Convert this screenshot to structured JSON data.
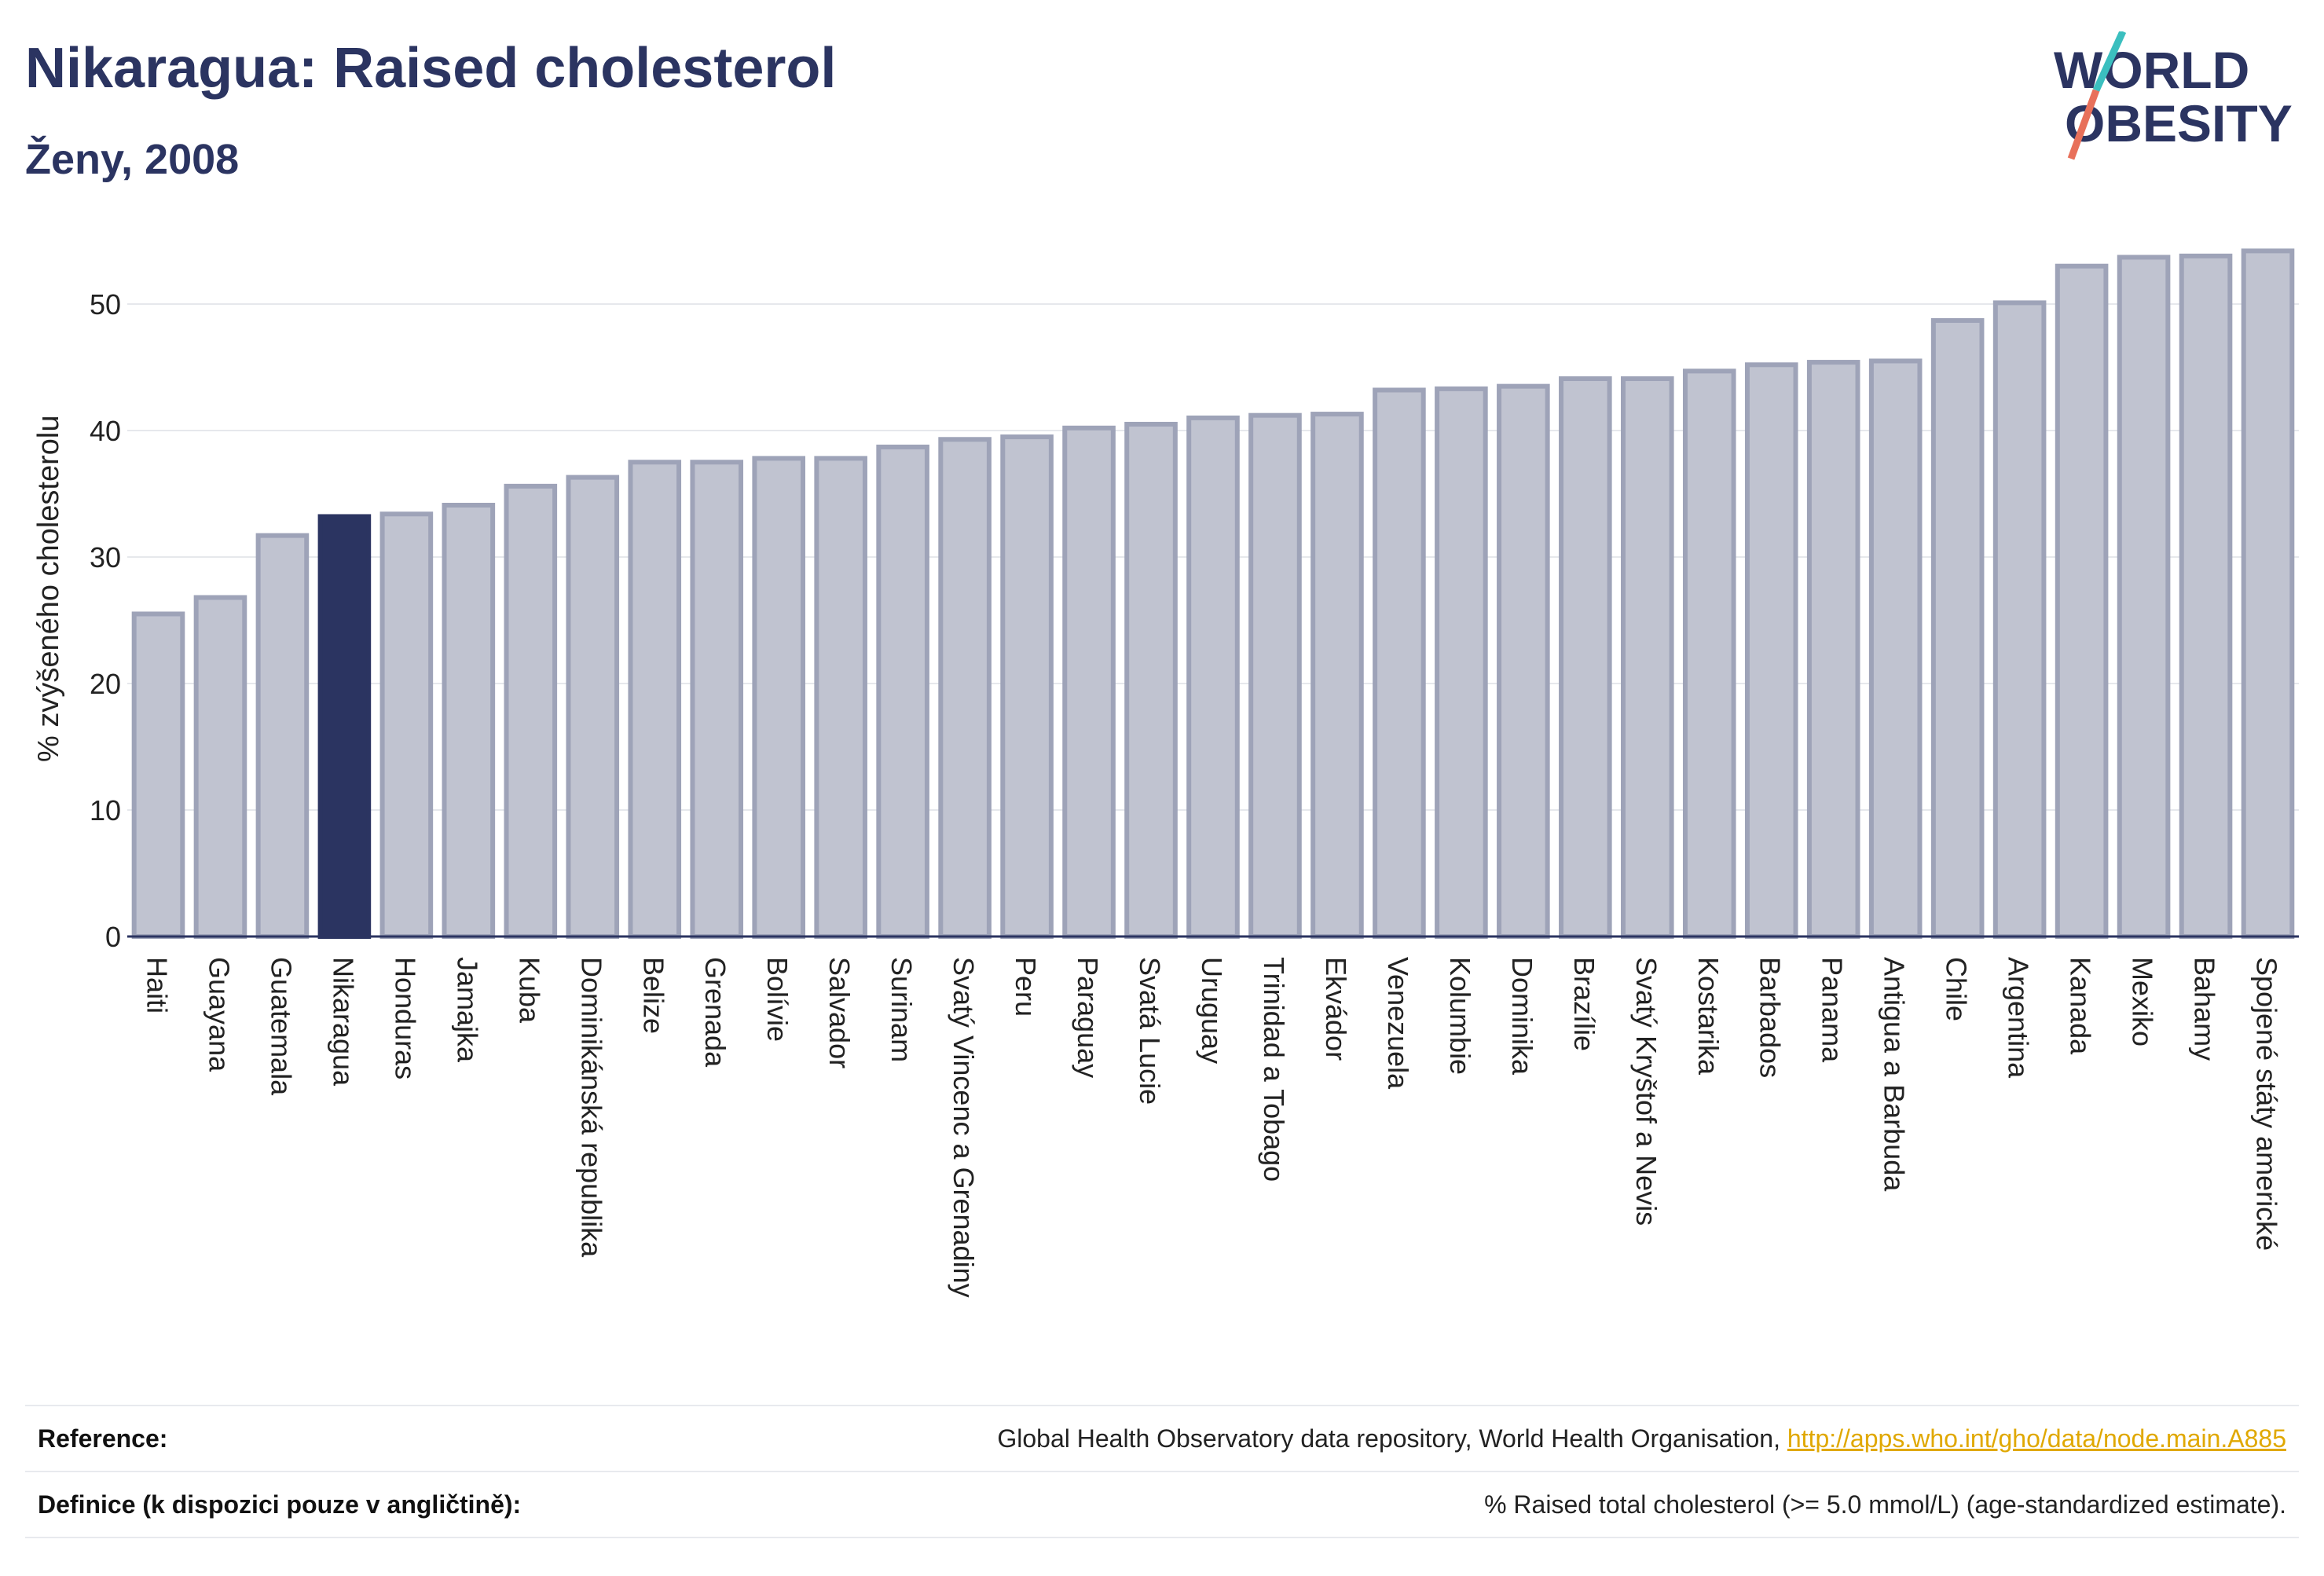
{
  "header": {
    "title": "Nikaragua: Raised cholesterol",
    "subtitle": "Ženy, 2008",
    "logo_line1": "WORLD",
    "logo_line2": "OBESITY"
  },
  "colors": {
    "bar": "#c0c3d0",
    "bar_border": "#9ea3b8",
    "highlight": "#2b3461",
    "title": "#2b3461",
    "logo_teal": "#3bbfbf",
    "logo_coral": "#e8705a",
    "link": "#e0a800"
  },
  "chart_data": {
    "type": "bar",
    "title": "",
    "xlabel": "",
    "ylabel": "% zvýšeného cholesterolu",
    "ylim": [
      0,
      55
    ],
    "yticks": [
      0,
      10,
      20,
      30,
      40,
      50
    ],
    "grid": true,
    "highlight": "Nikaragua",
    "categories": [
      "Haiti",
      "Guayana",
      "Guatemala",
      "Nikaragua",
      "Honduras",
      "Jamajka",
      "Kuba",
      "Dominikánská republika",
      "Belize",
      "Grenada",
      "Bolívie",
      "Salvador",
      "Surinam",
      "Svatý Vincenc a Grenadiny",
      "Peru",
      "Paraguay",
      "Svatá Lucie",
      "Uruguay",
      "Trinidad a Tobago",
      "Ekvádor",
      "Venezuela",
      "Kolumbie",
      "Dominika",
      "Brazílie",
      "Svatý Kryštof a Nevis",
      "Kostarika",
      "Barbados",
      "Panama",
      "Antigua a Barbuda",
      "Chile",
      "Argentina",
      "Kanada",
      "Mexiko",
      "Bahamy",
      "Spojené státy americké"
    ],
    "values": [
      25.5,
      26.8,
      31.7,
      33.2,
      33.4,
      34.1,
      35.6,
      36.3,
      37.5,
      37.5,
      37.8,
      37.8,
      38.7,
      39.3,
      39.5,
      40.2,
      40.5,
      41.0,
      41.2,
      41.3,
      43.2,
      43.3,
      43.5,
      44.1,
      44.1,
      44.7,
      45.2,
      45.4,
      45.5,
      48.7,
      50.1,
      53.0,
      53.7,
      53.8,
      54.2
    ]
  },
  "footer": {
    "reference_label": "Reference:",
    "reference_text": "Global Health Observatory data repository, World Health Organisation, ",
    "reference_link": "http://apps.who.int/gho/data/node.main.A885",
    "definition_label": "Definice (k dispozici pouze v angličtině):",
    "definition_text": "% Raised total cholesterol (>= 5.0 mmol/L) (age-standardized estimate)."
  }
}
